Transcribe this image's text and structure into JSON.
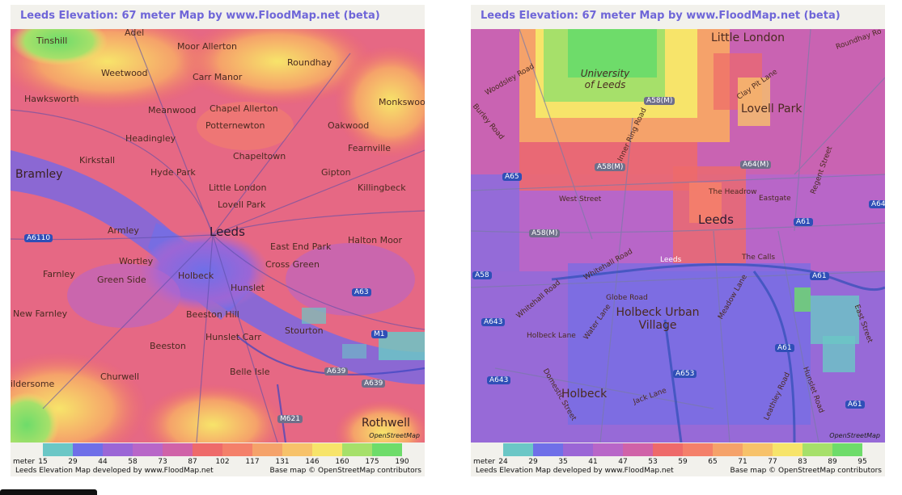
{
  "left": {
    "title": "Leeds Elevation: 67 meter Map by www.FloodMap.net (beta)",
    "places": [
      {
        "id": "tinshill",
        "label": "Tinshill"
      },
      {
        "id": "adel",
        "label": "Adel"
      },
      {
        "id": "moor-allerton",
        "label": "Moor Allerton"
      },
      {
        "id": "roundhay",
        "label": "Roundhay"
      },
      {
        "id": "weetwood",
        "label": "Weetwood"
      },
      {
        "id": "carr-manor",
        "label": "Carr Manor"
      },
      {
        "id": "hawksworth",
        "label": "Hawksworth"
      },
      {
        "id": "meanwood",
        "label": "Meanwood"
      },
      {
        "id": "chapel-allerton",
        "label": "Chapel Allerton"
      },
      {
        "id": "monkswood",
        "label": "Monkswood"
      },
      {
        "id": "potternewton",
        "label": "Potternewton"
      },
      {
        "id": "oakwood",
        "label": "Oakwood"
      },
      {
        "id": "headingley",
        "label": "Headingley"
      },
      {
        "id": "fearnville",
        "label": "Fearnville"
      },
      {
        "id": "kirkstall",
        "label": "Kirkstall"
      },
      {
        "id": "chapeltown",
        "label": "Chapeltown"
      },
      {
        "id": "bramley",
        "label": "Bramley"
      },
      {
        "id": "hyde-park",
        "label": "Hyde Park"
      },
      {
        "id": "gipton",
        "label": "Gipton"
      },
      {
        "id": "little-london",
        "label": "Little London"
      },
      {
        "id": "killingbeck",
        "label": "Killingbeck"
      },
      {
        "id": "lovell-park",
        "label": "Lovell Park"
      },
      {
        "id": "leeds",
        "label": "Leeds"
      },
      {
        "id": "armley",
        "label": "Armley"
      },
      {
        "id": "east-end-park",
        "label": "East End Park"
      },
      {
        "id": "halton-moor",
        "label": "Halton Moor"
      },
      {
        "id": "wortley",
        "label": "Wortley"
      },
      {
        "id": "cross-green",
        "label": "Cross Green"
      },
      {
        "id": "farnley",
        "label": "Farnley"
      },
      {
        "id": "green-side",
        "label": "Green Side"
      },
      {
        "id": "holbeck",
        "label": "Holbeck"
      },
      {
        "id": "hunslet",
        "label": "Hunslet"
      },
      {
        "id": "new-farnley",
        "label": "New Farnley"
      },
      {
        "id": "beeston-hill",
        "label": "Beeston Hill"
      },
      {
        "id": "stourton",
        "label": "Stourton"
      },
      {
        "id": "hunslet-carr",
        "label": "Hunslet Carr"
      },
      {
        "id": "beeston",
        "label": "Beeston"
      },
      {
        "id": "belle-isle",
        "label": "Belle Isle"
      },
      {
        "id": "churwell",
        "label": "Churwell"
      },
      {
        "id": "gildersome",
        "label": "ildersome"
      },
      {
        "id": "rothwell",
        "label": "Rothwell"
      }
    ],
    "roads": [
      {
        "id": "a6110",
        "label": "A6110"
      },
      {
        "id": "a63",
        "label": "A63"
      },
      {
        "id": "m1",
        "label": "M1"
      },
      {
        "id": "a639a",
        "label": "A639"
      },
      {
        "id": "a639b",
        "label": "A639"
      },
      {
        "id": "m621",
        "label": "M621"
      }
    ],
    "badge": "OpenStreetMap",
    "legend": {
      "unit": "meter",
      "values": [
        "15",
        "29",
        "44",
        "58",
        "73",
        "87",
        "102",
        "117",
        "131",
        "146",
        "160",
        "175",
        "190"
      ],
      "colors": [
        "#6bc7c6",
        "#6f6fe8",
        "#9b66d6",
        "#b866c8",
        "#d062a8",
        "#ee6a6a",
        "#f4806a",
        "#f5a26a",
        "#f7c26a",
        "#f7e46a",
        "#a6e06a",
        "#6edc6a"
      ],
      "developed": "Leeds Elevation Map developed by www.FloodMap.net",
      "credit": "Base map © OpenStreetMap contributors"
    }
  },
  "right": {
    "title": "Leeds Elevation: 67 meter Map by www.FloodMap.net (beta)",
    "places": [
      {
        "id": "little-london",
        "label": "Little London"
      },
      {
        "id": "university",
        "label": "University of Leeds"
      },
      {
        "id": "lovell-park",
        "label": "Lovell Park"
      },
      {
        "id": "the-headrow",
        "label": "The Headrow"
      },
      {
        "id": "eastgate",
        "label": "Eastgate"
      },
      {
        "id": "leeds",
        "label": "Leeds"
      },
      {
        "id": "west-street",
        "label": "West Street"
      },
      {
        "id": "whitehall-road",
        "label": "Whitehall Road"
      },
      {
        "id": "globe-road",
        "label": "Globe Road"
      },
      {
        "id": "holbeck-urban-village",
        "label": "Holbeck Urban Village"
      },
      {
        "id": "holbeck-lane",
        "label": "Holbeck Lane"
      },
      {
        "id": "water-lane",
        "label": "Water Lane"
      },
      {
        "id": "meadow-lane",
        "label": "Meadow Lane"
      },
      {
        "id": "the-calls",
        "label": "The Calls"
      },
      {
        "id": "holbeck",
        "label": "Holbeck"
      },
      {
        "id": "jack-lane",
        "label": "Jack Lane"
      },
      {
        "id": "domestic-street",
        "label": "Domestic Street"
      },
      {
        "id": "hunslet-road",
        "label": "Hunslet Road"
      },
      {
        "id": "leathley-road",
        "label": "Leathley Road"
      },
      {
        "id": "east-street",
        "label": "East Street"
      },
      {
        "id": "regent-street",
        "label": "Regent Street"
      },
      {
        "id": "woodsley-road",
        "label": "Woodsley Road"
      },
      {
        "id": "burley-road",
        "label": "Burley Road"
      },
      {
        "id": "inner-ring-road",
        "label": "Inner Ring Road"
      },
      {
        "id": "clay-pit-lane",
        "label": "Clay Pit Lane"
      },
      {
        "id": "roundhay-road",
        "label": "Roundhay Ro"
      },
      {
        "id": "leeds-station",
        "label": "Leeds"
      },
      {
        "id": "whitehall-road-2",
        "label": "Whitehall Road"
      }
    ],
    "roads": [
      {
        "id": "a58m-top",
        "label": "A58(M)"
      },
      {
        "id": "a58m-mid",
        "label": "A58(M)"
      },
      {
        "id": "a58m-low",
        "label": "A58(M)"
      },
      {
        "id": "a64m",
        "label": "A64(M)"
      },
      {
        "id": "a65",
        "label": "A65"
      },
      {
        "id": "a61a",
        "label": "A61"
      },
      {
        "id": "a61b",
        "label": "A61"
      },
      {
        "id": "a61c",
        "label": "A61"
      },
      {
        "id": "a61d",
        "label": "A61"
      },
      {
        "id": "a58",
        "label": "A58"
      },
      {
        "id": "a643a",
        "label": "A643"
      },
      {
        "id": "a643b",
        "label": "A643"
      },
      {
        "id": "a653",
        "label": "A653"
      },
      {
        "id": "a64",
        "label": "A64"
      }
    ],
    "badge": "OpenStreetMap",
    "legend": {
      "unit": "meter",
      "values": [
        "24",
        "29",
        "35",
        "41",
        "47",
        "53",
        "59",
        "65",
        "71",
        "77",
        "83",
        "89",
        "95"
      ],
      "colors": [
        "#6bc7c6",
        "#6f6fe8",
        "#9b66d6",
        "#b866c8",
        "#d062a8",
        "#ee6a6a",
        "#f4806a",
        "#f5a26a",
        "#f7c26a",
        "#f7e46a",
        "#a6e06a",
        "#6edc6a"
      ],
      "developed": "Leeds Elevation Map developed by www.FloodMap.net",
      "credit": "Base map © OpenStreetMap contributors"
    }
  }
}
